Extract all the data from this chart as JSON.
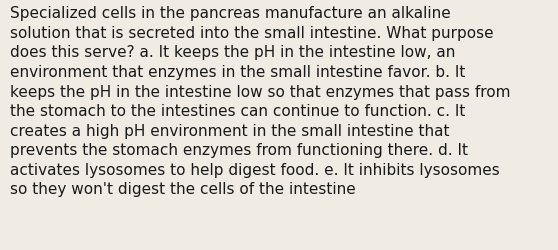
{
  "lines": [
    "Specialized cells in the pancreas manufacture an alkaline",
    "solution that is secreted into the small intestine. What purpose",
    "does this serve? a. It keeps the pH in the intestine low, an",
    "environment that enzymes in the small intestine favor. b. It",
    "keeps the pH in the intestine low so that enzymes that pass from",
    "the stomach to the intestines can continue to function. c. It",
    "creates a high pH environment in the small intestine that",
    "prevents the stomach enzymes from functioning there. d. It",
    "activates lysosomes to help digest food. e. It inhibits lysosomes",
    "so they won't digest the cells of the intestine"
  ],
  "background_color": "#f0ece4",
  "text_color": "#1a1a1a",
  "font_size": 11.0,
  "fig_width": 5.58,
  "fig_height": 2.51
}
